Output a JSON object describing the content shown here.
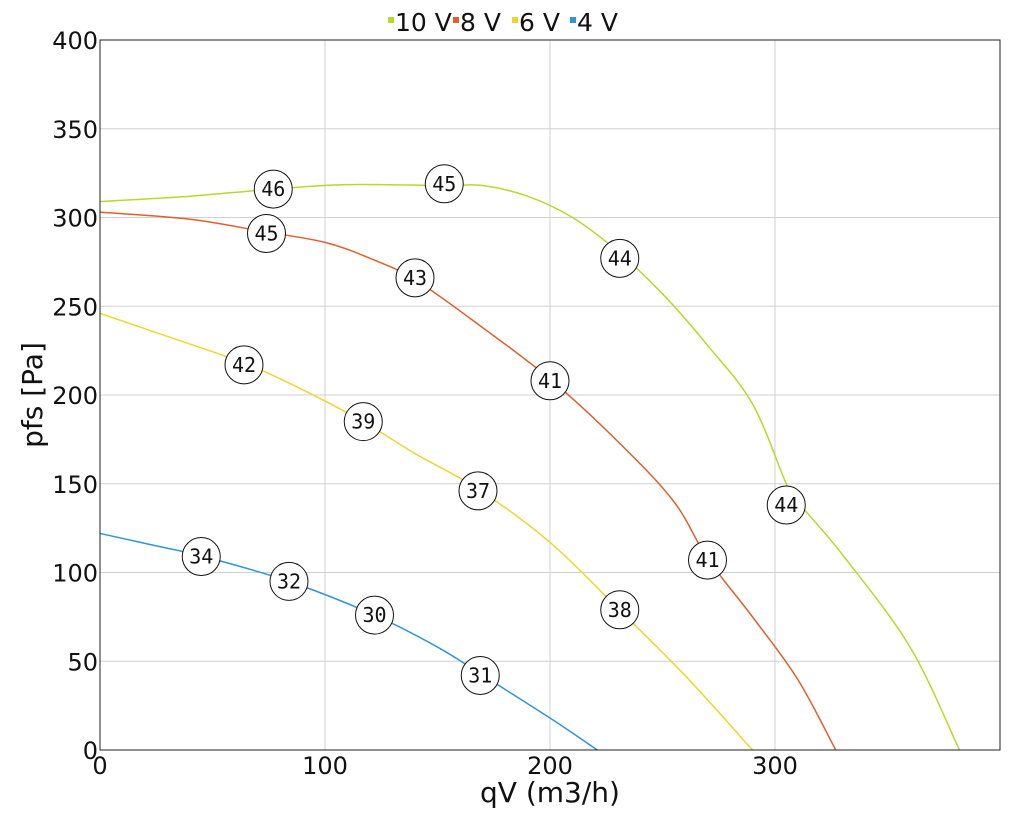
{
  "chart_data": {
    "type": "line",
    "xlabel": "qV (m3/h)",
    "ylabel": "pfs [Pa]",
    "xlim": [
      0,
      400
    ],
    "ylim": [
      0,
      400
    ],
    "x_ticks": [
      0,
      100,
      200,
      300
    ],
    "y_ticks": [
      0,
      50,
      100,
      150,
      200,
      250,
      300,
      350,
      400
    ],
    "grid": true,
    "legend_position": "top-center",
    "series": [
      {
        "name": "10 V",
        "color": "#b8d82a",
        "points": [
          [
            0,
            309
          ],
          [
            40,
            312
          ],
          [
            77,
            316
          ],
          [
            110,
            318.5
          ],
          [
            153,
            318
          ],
          [
            170,
            318
          ],
          [
            190,
            312
          ],
          [
            210,
            300
          ],
          [
            230,
            281
          ],
          [
            250,
            257
          ],
          [
            270,
            228
          ],
          [
            290,
            195
          ],
          [
            305,
            150
          ],
          [
            310,
            140
          ],
          [
            330,
            110
          ],
          [
            360,
            58
          ],
          [
            382,
            0
          ]
        ],
        "labels": [
          {
            "x": 77,
            "y": 316,
            "text": "46"
          },
          {
            "x": 153,
            "y": 319,
            "text": "45"
          },
          {
            "x": 231,
            "y": 277,
            "text": "44"
          },
          {
            "x": 305,
            "y": 138,
            "text": "44"
          }
        ]
      },
      {
        "name": "8 V",
        "color": "#e25f2b",
        "points": [
          [
            0,
            303
          ],
          [
            40,
            299
          ],
          [
            73,
            292
          ],
          [
            100,
            286
          ],
          [
            120,
            277
          ],
          [
            140,
            265
          ],
          [
            170,
            238
          ],
          [
            200,
            209
          ],
          [
            230,
            174
          ],
          [
            255,
            140
          ],
          [
            270,
            108
          ],
          [
            290,
            75
          ],
          [
            310,
            40
          ],
          [
            327,
            0
          ]
        ],
        "labels": [
          {
            "x": 74,
            "y": 291,
            "text": "45"
          },
          {
            "x": 140,
            "y": 266,
            "text": "43"
          },
          {
            "x": 200,
            "y": 208,
            "text": "41"
          },
          {
            "x": 270,
            "y": 107,
            "text": "41"
          }
        ]
      },
      {
        "name": "6 V",
        "color": "#ecd72f",
        "points": [
          [
            0,
            246
          ],
          [
            30,
            233
          ],
          [
            64,
            218
          ],
          [
            90,
            203
          ],
          [
            117,
            185
          ],
          [
            140,
            167
          ],
          [
            168,
            147
          ],
          [
            200,
            117
          ],
          [
            230,
            80
          ],
          [
            260,
            42
          ],
          [
            290,
            0
          ]
        ],
        "labels": [
          {
            "x": 64,
            "y": 217,
            "text": "42"
          },
          {
            "x": 117,
            "y": 185,
            "text": "39"
          },
          {
            "x": 168,
            "y": 146,
            "text": "37"
          },
          {
            "x": 231,
            "y": 79,
            "text": "38"
          }
        ]
      },
      {
        "name": "4 V",
        "color": "#2d95dc",
        "points": [
          [
            0,
            122
          ],
          [
            25,
            115
          ],
          [
            46,
            109
          ],
          [
            84,
            95
          ],
          [
            122,
            76
          ],
          [
            150,
            58
          ],
          [
            169,
            43
          ],
          [
            200,
            18
          ],
          [
            221,
            0
          ]
        ],
        "labels": [
          {
            "x": 45,
            "y": 109,
            "text": "34"
          },
          {
            "x": 84,
            "y": 95,
            "text": "32"
          },
          {
            "x": 122,
            "y": 76,
            "text": "30"
          },
          {
            "x": 169,
            "y": 42,
            "text": "31"
          }
        ]
      }
    ]
  }
}
